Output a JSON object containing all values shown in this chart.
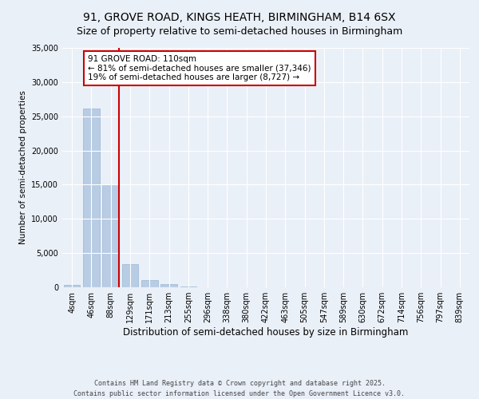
{
  "title": "91, GROVE ROAD, KINGS HEATH, BIRMINGHAM, B14 6SX",
  "subtitle": "Size of property relative to semi-detached houses in Birmingham",
  "xlabel": "Distribution of semi-detached houses by size in Birmingham",
  "ylabel": "Number of semi-detached properties",
  "categories": [
    "4sqm",
    "46sqm",
    "88sqm",
    "129sqm",
    "171sqm",
    "213sqm",
    "255sqm",
    "296sqm",
    "338sqm",
    "380sqm",
    "422sqm",
    "463sqm",
    "505sqm",
    "547sqm",
    "589sqm",
    "630sqm",
    "672sqm",
    "714sqm",
    "756sqm",
    "797sqm",
    "839sqm"
  ],
  "values": [
    400,
    26100,
    15100,
    3350,
    1050,
    430,
    130,
    0,
    0,
    0,
    0,
    0,
    0,
    0,
    0,
    0,
    0,
    0,
    0,
    0,
    0
  ],
  "bar_color": "#b8cce4",
  "bar_edge_color": "#9ab5d4",
  "vline_color": "#cc0000",
  "vline_x_index": 2,
  "annotation_text": "91 GROVE ROAD: 110sqm\n← 81% of semi-detached houses are smaller (37,346)\n19% of semi-detached houses are larger (8,727) →",
  "annotation_box_facecolor": "#ffffff",
  "annotation_box_edgecolor": "#cc0000",
  "ylim": [
    0,
    35000
  ],
  "yticks": [
    0,
    5000,
    10000,
    15000,
    20000,
    25000,
    30000,
    35000
  ],
  "background_color": "#eaf0f8",
  "grid_color": "#ffffff",
  "footer": "Contains HM Land Registry data © Crown copyright and database right 2025.\nContains public sector information licensed under the Open Government Licence v3.0.",
  "title_fontsize": 10,
  "subtitle_fontsize": 9,
  "xlabel_fontsize": 8.5,
  "ylabel_fontsize": 7.5,
  "tick_fontsize": 7,
  "annotation_fontsize": 7.5,
  "footer_fontsize": 6
}
